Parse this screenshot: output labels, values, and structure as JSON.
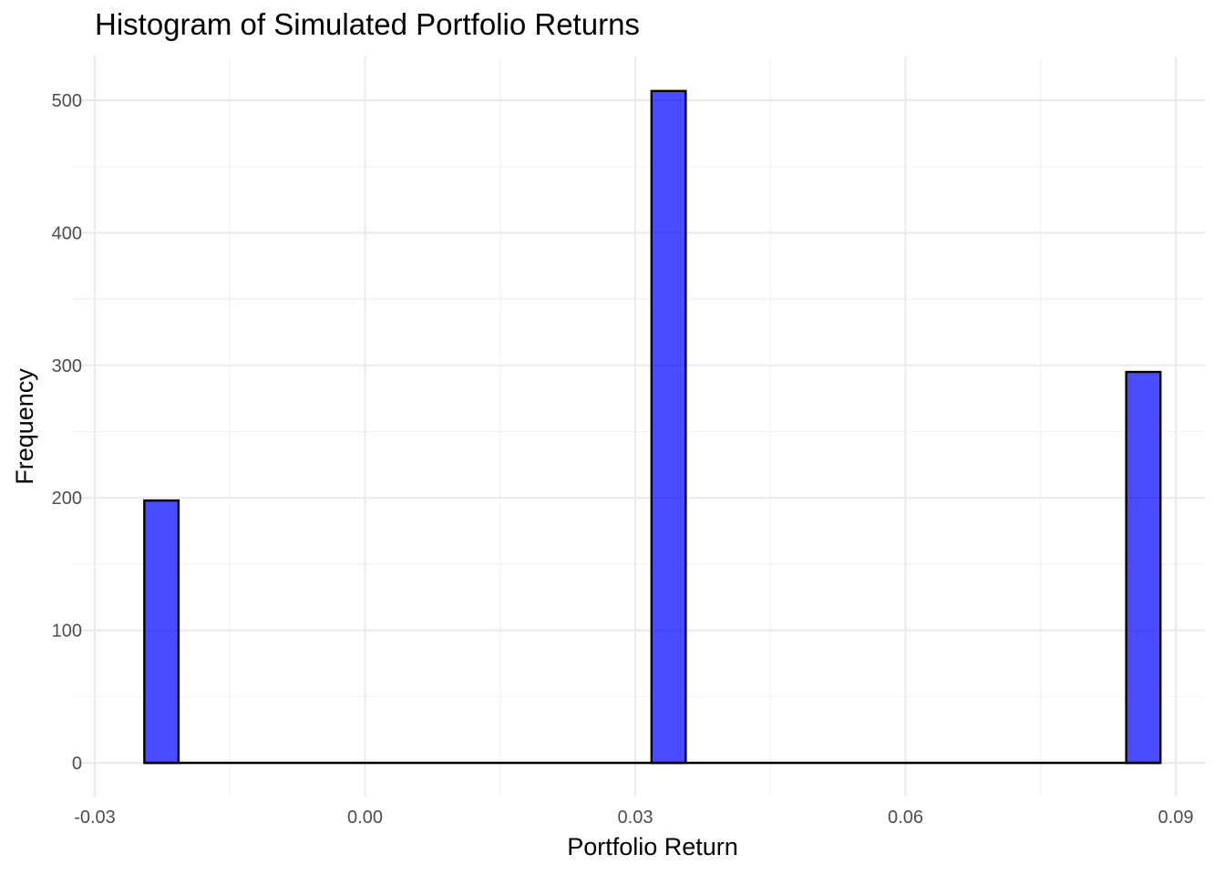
{
  "chart_data": {
    "type": "bar",
    "title": "Histogram of Simulated Portfolio Returns",
    "xlabel": "Portfolio Return",
    "ylabel": "Frequency",
    "xlim": [
      -0.03,
      0.09
    ],
    "ylim": [
      0,
      500
    ],
    "x_ticks": [
      -0.03,
      0.0,
      0.03,
      0.06,
      0.09
    ],
    "x_tick_labels": [
      "-0.03",
      "0.00",
      "0.03",
      "0.06",
      "0.09"
    ],
    "y_ticks": [
      0,
      100,
      200,
      300,
      400,
      500
    ],
    "y_tick_labels": [
      "0",
      "100",
      "200",
      "300",
      "400",
      "500"
    ],
    "bins": [
      {
        "x_start": -0.0245,
        "x_end": -0.0207,
        "count": 198
      },
      {
        "x_start": 0.0318,
        "x_end": 0.0356,
        "count": 507
      },
      {
        "x_start": 0.0845,
        "x_end": 0.0883,
        "count": 295
      }
    ],
    "baseline": {
      "x_start": -0.0245,
      "x_end": 0.0883
    },
    "fill_color": "#0000FF",
    "fill_opacity": 0.7,
    "edge_color": "#000000",
    "grid": true,
    "legend": "none"
  }
}
